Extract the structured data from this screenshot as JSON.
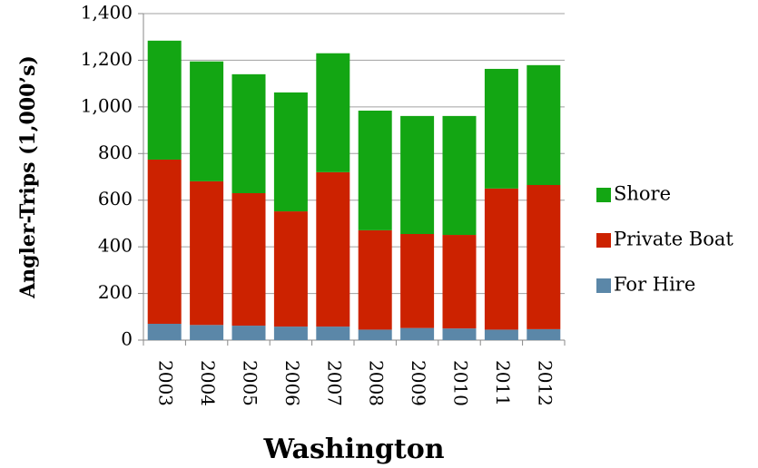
{
  "chart_data": {
    "type": "stacked_bar",
    "xlabel": "Washington",
    "ylabel": "Angler-Trips (1,000’s)",
    "categories": [
      "2003",
      "2004",
      "2005",
      "2006",
      "2007",
      "2008",
      "2009",
      "2010",
      "2011",
      "2012"
    ],
    "series": [
      {
        "name": "For Hire",
        "color": "#5b87a8",
        "values": [
          70,
          65,
          62,
          58,
          58,
          45,
          52,
          50,
          45,
          47
        ]
      },
      {
        "name": "Private Boat",
        "color": "#cc2200",
        "values": [
          704,
          616,
          568,
          494,
          662,
          426,
          403,
          401,
          605,
          618
        ]
      },
      {
        "name": "Shore",
        "color": "#13a613",
        "values": [
          510,
          514,
          510,
          510,
          510,
          513,
          506,
          510,
          513,
          514
        ]
      }
    ],
    "ylim": [
      0,
      1400
    ],
    "yticks": [
      0,
      {
        "value": 200,
        "label": "200"
      },
      {
        "value": 400,
        "label": "400"
      },
      {
        "value": 600,
        "label": "600"
      },
      {
        "value": 800,
        "label": "800"
      },
      {
        "value": 1000,
        "label": "1,000"
      },
      {
        "value": 1200,
        "label": "1,200"
      },
      {
        "value": 1400,
        "label": "1,400"
      }
    ],
    "grid": true,
    "legend": "right"
  }
}
